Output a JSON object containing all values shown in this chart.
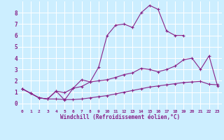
{
  "bg_color": "#cceeff",
  "grid_color": "#ffffff",
  "line_color": "#882288",
  "xlabel": "Windchill (Refroidissement éolien,°C)",
  "xlabel_color": "#882288",
  "xlim": [
    -0.5,
    23.5
  ],
  "ylim": [
    -0.5,
    9.0
  ],
  "xticks": [
    0,
    1,
    2,
    3,
    4,
    5,
    6,
    7,
    8,
    9,
    10,
    11,
    12,
    13,
    14,
    15,
    16,
    17,
    18,
    19,
    20,
    21,
    22,
    23
  ],
  "yticks": [
    0,
    1,
    2,
    3,
    4,
    5,
    6,
    7,
    8
  ],
  "series": [
    {
      "x": [
        0,
        1,
        2,
        3,
        4,
        5,
        6,
        7,
        8,
        9,
        10,
        11,
        12,
        13,
        14,
        15,
        16,
        17,
        18,
        19,
        20,
        21,
        22,
        23
      ],
      "y": [
        1.3,
        0.9,
        0.5,
        0.4,
        0.4,
        0.35,
        0.35,
        0.4,
        0.5,
        0.6,
        0.7,
        0.85,
        1.0,
        1.15,
        1.3,
        1.45,
        1.55,
        1.65,
        1.75,
        1.85,
        1.9,
        1.95,
        1.7,
        1.65
      ]
    },
    {
      "x": [
        0,
        1,
        2,
        3,
        4,
        5,
        6,
        7,
        8,
        9,
        10,
        11,
        12,
        13,
        14,
        15,
        16,
        17,
        18,
        19,
        20,
        21,
        22,
        23
      ],
      "y": [
        1.3,
        0.9,
        0.5,
        0.4,
        1.1,
        0.95,
        1.35,
        1.5,
        1.9,
        2.0,
        2.1,
        2.3,
        2.55,
        2.7,
        3.1,
        3.0,
        2.8,
        3.0,
        3.3,
        3.85,
        4.0,
        3.0,
        4.2,
        1.55
      ]
    },
    {
      "x": [
        0,
        1,
        2,
        3,
        4,
        5,
        6,
        7,
        8,
        9,
        10,
        11,
        12,
        13,
        14,
        15,
        16,
        17,
        18,
        19,
        20,
        21,
        22,
        23
      ],
      "y": [
        1.3,
        0.9,
        0.5,
        0.4,
        1.1,
        0.3,
        1.35,
        2.1,
        1.9,
        3.2,
        6.0,
        6.9,
        7.0,
        6.7,
        8.0,
        8.65,
        8.3,
        6.4,
        6.0,
        6.0,
        null,
        null,
        null,
        null
      ]
    }
  ]
}
